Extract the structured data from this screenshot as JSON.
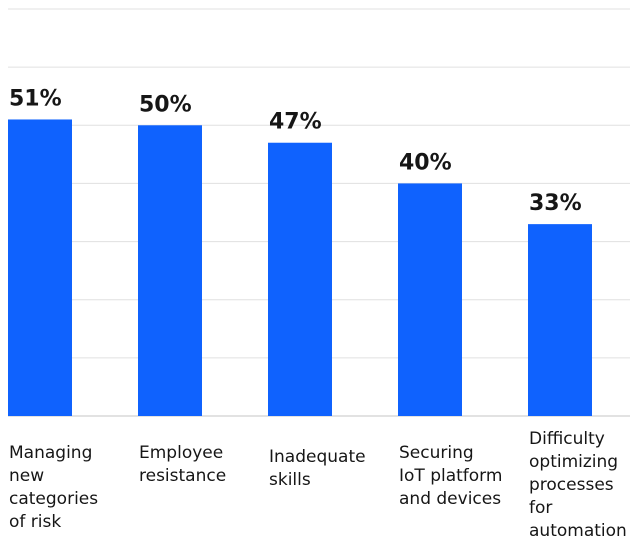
{
  "chart_data": {
    "type": "bar",
    "categories": [
      [
        "Managing",
        "new",
        "categories",
        "of risk"
      ],
      [
        "Employee",
        "resistance"
      ],
      [
        "Inadequate",
        "skills"
      ],
      [
        "Securing",
        "IoT platform",
        "and devices"
      ],
      [
        "Difficulty",
        "optimizing",
        "processes",
        "for",
        "automation"
      ]
    ],
    "values": [
      51,
      50,
      47,
      40,
      33
    ],
    "value_labels": [
      "51%",
      "50%",
      "47%",
      "40%",
      "33%"
    ],
    "ylim": [
      0,
      70
    ],
    "grid": true,
    "bar_color": "#0f62fe",
    "title": "",
    "xlabel": "",
    "ylabel": ""
  }
}
